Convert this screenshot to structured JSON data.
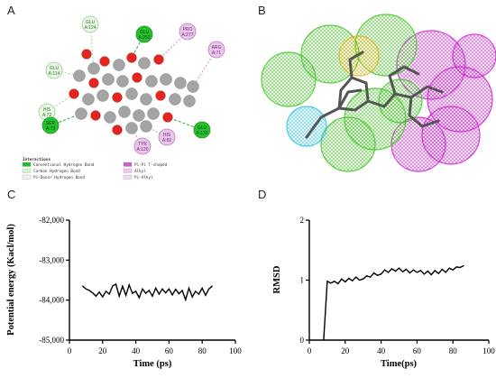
{
  "panels": {
    "a": "A",
    "b": "B",
    "c": "C",
    "d": "D"
  },
  "panel_a": {
    "residues": [
      {
        "label1": "GLU",
        "label2": "A:124",
        "style": "light",
        "x": 100,
        "y": 27
      },
      {
        "label1": "GLU",
        "label2": "A:262",
        "style": "green",
        "x": 160,
        "y": 38
      },
      {
        "label1": "PRO",
        "label2": "A:277",
        "style": "pink",
        "x": 208,
        "y": 35
      },
      {
        "label1": "ARG",
        "label2": "A:71",
        "style": "pink",
        "x": 240,
        "y": 55
      },
      {
        "label1": "GLU",
        "label2": "A:114",
        "style": "light",
        "x": 60,
        "y": 78
      },
      {
        "label1": "HIS",
        "label2": "A:72",
        "style": "light",
        "x": 52,
        "y": 124
      },
      {
        "label1": "SER",
        "label2": "A:73",
        "style": "green",
        "x": 56,
        "y": 139
      },
      {
        "label1": "TYR",
        "label2": "A:120",
        "style": "pink",
        "x": 158,
        "y": 162
      },
      {
        "label1": "HIS",
        "label2": "A:82",
        "style": "pink",
        "x": 185,
        "y": 152
      },
      {
        "label1": "GLU",
        "label2": "A:133",
        "style": "green",
        "x": 224,
        "y": 144
      }
    ],
    "legend_title": "Interactions",
    "legend": [
      {
        "label": "Conventional Hydrogen Bond",
        "color": "#22bb33"
      },
      {
        "label": "Carbon Hydrogen Bond",
        "color": "#d6f0d6"
      },
      {
        "label": "Pi-Donor Hydrogen Bond",
        "color": "#eaf5ea"
      },
      {
        "label": "Pi-Pi T-shaped",
        "color": "#d05cc8"
      },
      {
        "label": "Alkyl",
        "color": "#f0c8ee"
      },
      {
        "label": "Pi-Alkyl",
        "color": "#f3d9f1"
      }
    ]
  },
  "chart_data": [
    {
      "type": "line",
      "title": "",
      "xlabel": "Time (ps)",
      "ylabel": "Potential energy (Kacl/mol)",
      "xlim": [
        0,
        100
      ],
      "ylim": [
        -85000,
        -82000
      ],
      "xticks": [
        0,
        20,
        40,
        60,
        80,
        100
      ],
      "yticks": [
        -85000,
        -84000,
        -83000,
        -82000
      ],
      "xtick_labels": [
        "0",
        "20",
        "40",
        "60",
        "80",
        "100"
      ],
      "ytick_labels": [
        "-85,000",
        "-84,000",
        "-83,000",
        "-82,000"
      ],
      "grid": false,
      "series": [
        {
          "x": [
            8,
            10,
            12,
            14,
            16,
            18,
            20,
            22,
            24,
            26,
            28,
            30,
            32,
            34,
            36,
            38,
            40,
            42,
            44,
            46,
            48,
            50,
            52,
            54,
            56,
            58,
            60,
            62,
            64,
            66,
            68,
            70,
            72,
            74,
            76,
            78,
            80,
            82,
            84,
            86
          ],
          "y": [
            -83650,
            -83720,
            -83760,
            -83820,
            -83900,
            -83800,
            -83920,
            -83780,
            -83850,
            -83650,
            -83600,
            -83900,
            -83650,
            -83880,
            -83620,
            -83830,
            -83780,
            -83940,
            -83720,
            -83830,
            -83760,
            -83900,
            -83700,
            -83850,
            -83720,
            -83820,
            -83720,
            -83870,
            -83730,
            -83840,
            -83760,
            -83990,
            -83700,
            -83920,
            -83780,
            -83850,
            -83700,
            -83880,
            -83720,
            -83650
          ]
        }
      ]
    },
    {
      "type": "line",
      "title": "",
      "xlabel": "Time(ps)",
      "ylabel": "RMSD",
      "xlim": [
        0,
        100
      ],
      "ylim": [
        0,
        2
      ],
      "xticks": [
        0,
        20,
        40,
        60,
        80,
        100
      ],
      "yticks": [
        0,
        1,
        2
      ],
      "xtick_labels": [
        "0",
        "20",
        "40",
        "60",
        "80",
        "100"
      ],
      "ytick_labels": [
        "0",
        "1",
        "2"
      ],
      "grid": false,
      "series": [
        {
          "x": [
            8,
            10,
            12,
            14,
            16,
            18,
            20,
            22,
            24,
            26,
            28,
            30,
            32,
            34,
            36,
            38,
            40,
            42,
            44,
            46,
            48,
            50,
            52,
            54,
            56,
            58,
            60,
            62,
            64,
            66,
            68,
            70,
            72,
            74,
            76,
            78,
            80,
            82,
            84,
            86
          ],
          "y": [
            0,
            0.98,
            0.95,
            0.98,
            0.94,
            1.02,
            0.97,
            1.03,
            0.99,
            1.05,
            1.0,
            1.02,
            1.07,
            1.05,
            1.12,
            1.08,
            1.1,
            1.17,
            1.13,
            1.19,
            1.15,
            1.2,
            1.14,
            1.18,
            1.12,
            1.17,
            1.13,
            1.16,
            1.1,
            1.15,
            1.09,
            1.16,
            1.11,
            1.18,
            1.13,
            1.2,
            1.17,
            1.22,
            1.21,
            1.24
          ]
        }
      ]
    }
  ]
}
